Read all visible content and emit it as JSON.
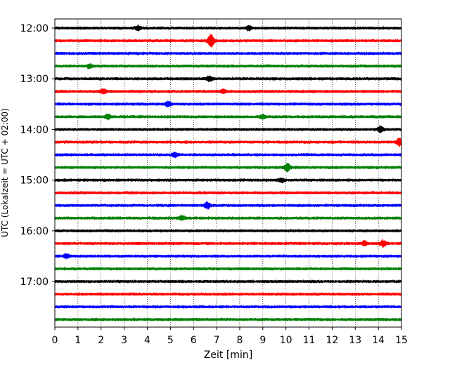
{
  "chart_data": {
    "type": "line",
    "title": "",
    "xlabel": "Zeit  [min]",
    "ylabel": "UTC (Lokalzeit = UTC + 02:00)",
    "xlim": [
      0,
      15
    ],
    "x_ticks": [
      0,
      1,
      2,
      3,
      4,
      5,
      6,
      7,
      8,
      9,
      10,
      11,
      12,
      13,
      14,
      15
    ],
    "y_tick_labels": [
      "12:00",
      "13:00",
      "14:00",
      "15:00",
      "16:00",
      "17:00"
    ],
    "grid": "vertical dotted",
    "colors": [
      "#000000",
      "#ff0000",
      "#0000ff",
      "#008000"
    ],
    "rows": [
      {
        "time": "12:00",
        "color": "#000000",
        "events": [
          {
            "t": 3.6,
            "a": 1.3
          },
          {
            "t": 8.4,
            "a": 1.2
          }
        ]
      },
      {
        "time": "12:15",
        "color": "#ff0000",
        "events": [
          {
            "t": 6.75,
            "a": 4.5
          }
        ]
      },
      {
        "time": "12:30",
        "color": "#0000ff",
        "events": []
      },
      {
        "time": "12:45",
        "color": "#008000",
        "events": [
          {
            "t": 1.5,
            "a": 1.3
          }
        ]
      },
      {
        "time": "13:00",
        "color": "#000000",
        "events": [
          {
            "t": 6.7,
            "a": 1.5
          }
        ]
      },
      {
        "time": "13:15",
        "color": "#ff0000",
        "events": [
          {
            "t": 2.1,
            "a": 1.6
          },
          {
            "t": 7.3,
            "a": 1.1
          }
        ]
      },
      {
        "time": "13:30",
        "color": "#0000ff",
        "events": [
          {
            "t": 4.9,
            "a": 1.4
          }
        ]
      },
      {
        "time": "13:45",
        "color": "#008000",
        "events": [
          {
            "t": 2.3,
            "a": 1.4
          },
          {
            "t": 9.0,
            "a": 1.2
          }
        ]
      },
      {
        "time": "14:00",
        "color": "#000000",
        "events": [
          {
            "t": 14.1,
            "a": 2.0
          }
        ]
      },
      {
        "time": "14:15",
        "color": "#ff0000",
        "events": [
          {
            "t": 14.9,
            "a": 2.3
          }
        ]
      },
      {
        "time": "14:30",
        "color": "#0000ff",
        "events": [
          {
            "t": 5.2,
            "a": 1.4
          }
        ]
      },
      {
        "time": "14:45",
        "color": "#008000",
        "events": [
          {
            "t": 10.05,
            "a": 2.4
          }
        ]
      },
      {
        "time": "15:00",
        "color": "#000000",
        "events": [
          {
            "t": 9.8,
            "a": 1.1
          }
        ]
      },
      {
        "time": "15:15",
        "color": "#ff0000",
        "events": []
      },
      {
        "time": "15:30",
        "color": "#0000ff",
        "events": [
          {
            "t": 6.6,
            "a": 1.8
          }
        ]
      },
      {
        "time": "15:45",
        "color": "#008000",
        "events": [
          {
            "t": 5.5,
            "a": 1.3
          }
        ]
      },
      {
        "time": "16:00",
        "color": "#000000",
        "events": []
      },
      {
        "time": "16:15",
        "color": "#ff0000",
        "events": [
          {
            "t": 14.2,
            "a": 1.9
          },
          {
            "t": 13.4,
            "a": 1.2
          }
        ]
      },
      {
        "time": "16:30",
        "color": "#0000ff",
        "events": [
          {
            "t": 0.5,
            "a": 1.2
          }
        ]
      },
      {
        "time": "16:45",
        "color": "#008000",
        "events": []
      },
      {
        "time": "17:00",
        "color": "#000000",
        "events": []
      },
      {
        "time": "17:15",
        "color": "#ff0000",
        "events": []
      },
      {
        "time": "17:30",
        "color": "#0000ff",
        "events": []
      },
      {
        "time": "17:45",
        "color": "#008000",
        "events": []
      }
    ]
  }
}
